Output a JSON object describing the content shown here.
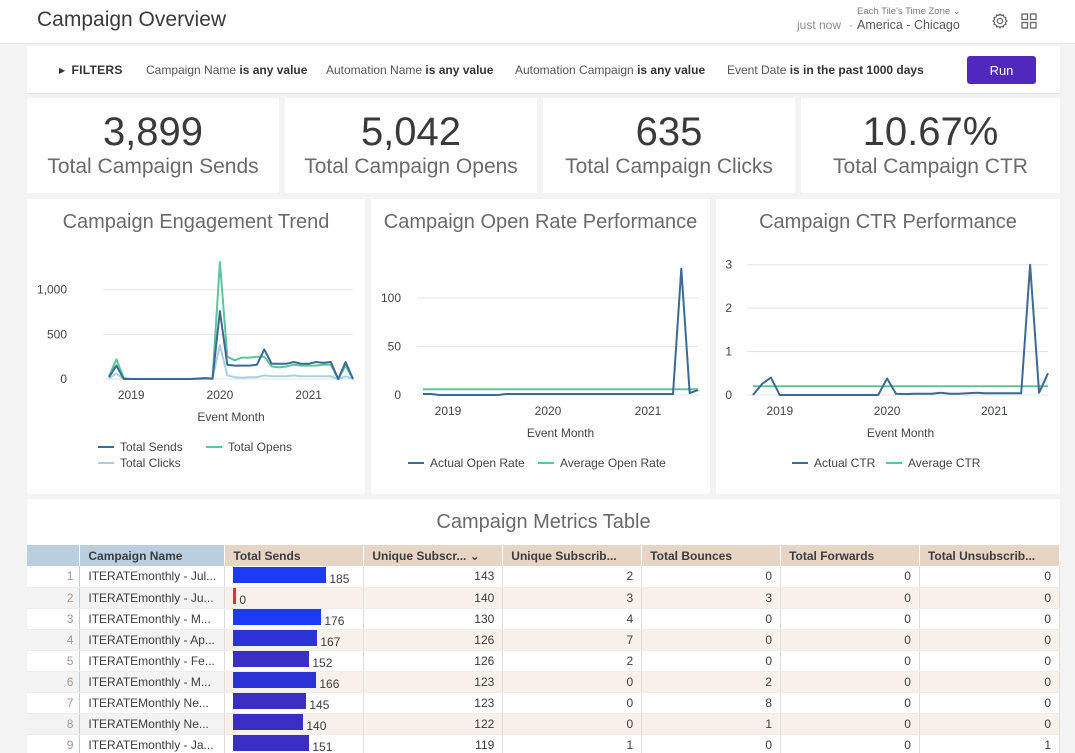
{
  "header": {
    "title": "Campaign Overview",
    "refresh": "just now",
    "tz_caption": "Each Tile's Time Zone",
    "tz_value": "America - Chicago",
    "dot": "·"
  },
  "filters": {
    "toggle_label": "FILTERS",
    "items": [
      {
        "field": "Campaign Name",
        "cond": "is any value"
      },
      {
        "field": "Automation Name",
        "cond": "is any value"
      },
      {
        "field": "Automation Campaign",
        "cond": "is any value"
      },
      {
        "field": "Event Date",
        "cond": "is in the past 1000 days"
      }
    ],
    "run_label": "Run"
  },
  "kpis": [
    {
      "value": "3,899",
      "label": "Total Campaign Sends"
    },
    {
      "value": "5,042",
      "label": "Total Campaign Opens"
    },
    {
      "value": "635",
      "label": "Total Campaign Clicks"
    },
    {
      "value": "10.67%",
      "label": "Total Campaign CTR"
    }
  ],
  "colors": {
    "sends": "#3d6a94",
    "opens": "#5cc59a",
    "clicks": "#a9cfe0",
    "actual": "#3d6a94",
    "average": "#5cc59a",
    "run": "#5128bd",
    "bar_blue": "#1d3af5",
    "bar_red": "#e0322a"
  },
  "charts": {
    "engagement": {
      "title": "Campaign Engagement Trend",
      "xlabel": "Event Month",
      "legend": [
        "Total Sends",
        "Total Opens",
        "Total Clicks"
      ]
    },
    "openrate": {
      "title": "Campaign Open Rate Performance",
      "xlabel": "Event Month",
      "legend": [
        "Actual Open Rate",
        "Average Open Rate"
      ]
    },
    "ctr": {
      "title": "Campaign CTR Performance",
      "xlabel": "Event Month",
      "legend": [
        "Actual CTR",
        "Average CTR"
      ]
    }
  },
  "chart_data": [
    {
      "type": "line",
      "title": "Campaign Engagement Trend",
      "xlabel": "Event Month",
      "xticks": [
        "2019",
        "2020",
        "2021"
      ],
      "yticks": [
        "0",
        "500",
        "1,000"
      ],
      "ylim": [
        0,
        1400
      ],
      "x": [
        "2018-10",
        "2018-11",
        "2018-12",
        "2019-01",
        "2019-02",
        "2019-03",
        "2019-04",
        "2019-05",
        "2019-06",
        "2019-07",
        "2019-08",
        "2019-09",
        "2019-10",
        "2019-11",
        "2019-12",
        "2020-01",
        "2020-02",
        "2020-03",
        "2020-04",
        "2020-05",
        "2020-06",
        "2020-07",
        "2020-08",
        "2020-09",
        "2020-10",
        "2020-11",
        "2020-12",
        "2021-01",
        "2021-02",
        "2021-03",
        "2021-04",
        "2021-05",
        "2021-06",
        "2021-07"
      ],
      "series": [
        {
          "name": "Total Sends",
          "values": [
            20,
            150,
            0,
            0,
            0,
            0,
            0,
            0,
            0,
            0,
            0,
            0,
            5,
            10,
            5,
            760,
            160,
            150,
            150,
            150,
            160,
            330,
            170,
            170,
            170,
            190,
            170,
            170,
            190,
            180,
            190,
            0,
            190,
            0
          ]
        },
        {
          "name": "Total Opens",
          "values": [
            30,
            220,
            10,
            0,
            0,
            0,
            0,
            0,
            0,
            0,
            0,
            0,
            5,
            10,
            5,
            1310,
            250,
            210,
            240,
            240,
            250,
            250,
            140,
            130,
            140,
            160,
            150,
            150,
            150,
            160,
            160,
            0,
            150,
            0
          ]
        },
        {
          "name": "Total Clicks",
          "values": [
            5,
            60,
            0,
            0,
            0,
            0,
            0,
            0,
            0,
            0,
            0,
            0,
            0,
            0,
            0,
            380,
            40,
            20,
            15,
            20,
            20,
            40,
            30,
            30,
            30,
            40,
            30,
            30,
            30,
            30,
            30,
            0,
            30,
            0
          ]
        }
      ]
    },
    {
      "type": "line",
      "title": "Campaign Open Rate Performance",
      "xlabel": "Event Month",
      "xticks": [
        "2019",
        "2020",
        "2021"
      ],
      "yticks": [
        "0",
        "50",
        "100"
      ],
      "ylim": [
        0,
        140
      ],
      "x": [
        "2018-10",
        "2018-11",
        "2018-12",
        "2019-01",
        "2019-02",
        "2019-03",
        "2019-04",
        "2019-05",
        "2019-06",
        "2019-07",
        "2019-08",
        "2019-09",
        "2019-10",
        "2019-11",
        "2019-12",
        "2020-01",
        "2020-02",
        "2020-03",
        "2020-04",
        "2020-05",
        "2020-06",
        "2020-07",
        "2020-08",
        "2020-09",
        "2020-10",
        "2020-11",
        "2020-12",
        "2021-01",
        "2021-02",
        "2021-03",
        "2021-04",
        "2021-05",
        "2021-06",
        "2021-07"
      ],
      "series": [
        {
          "name": "Actual Open Rate",
          "values": [
            1,
            1,
            0,
            0,
            0,
            0,
            0,
            0,
            0,
            0,
            1,
            1,
            1,
            1,
            1,
            1,
            1,
            1,
            1,
            1,
            1,
            1,
            1,
            1,
            1,
            1,
            1,
            1,
            1,
            1,
            1,
            130,
            2,
            5
          ]
        },
        {
          "name": "Average Open Rate",
          "values": [
            6,
            6,
            6,
            6,
            6,
            6,
            6,
            6,
            6,
            6,
            6,
            6,
            6,
            6,
            6,
            6,
            6,
            6,
            6,
            6,
            6,
            6,
            6,
            6,
            6,
            6,
            6,
            6,
            6,
            6,
            6,
            6,
            6,
            6
          ]
        }
      ]
    },
    {
      "type": "line",
      "title": "Campaign CTR Performance",
      "xlabel": "Event Month",
      "xticks": [
        "2019",
        "2020",
        "2021"
      ],
      "yticks": [
        "0",
        "1",
        "2",
        "3"
      ],
      "ylim": [
        0,
        3.2
      ],
      "x": [
        "2018-10",
        "2018-11",
        "2018-12",
        "2019-01",
        "2019-02",
        "2019-03",
        "2019-04",
        "2019-05",
        "2019-06",
        "2019-07",
        "2019-08",
        "2019-09",
        "2019-10",
        "2019-11",
        "2019-12",
        "2020-01",
        "2020-02",
        "2020-03",
        "2020-04",
        "2020-05",
        "2020-06",
        "2020-07",
        "2020-08",
        "2020-09",
        "2020-10",
        "2020-11",
        "2020-12",
        "2021-01",
        "2021-02",
        "2021-03",
        "2021-04",
        "2021-05",
        "2021-06",
        "2021-07"
      ],
      "series": [
        {
          "name": "Actual CTR",
          "values": [
            0,
            0.25,
            0.4,
            0,
            0,
            0,
            0,
            0,
            0,
            0,
            0,
            0,
            0,
            0,
            0,
            0.38,
            0.03,
            0.02,
            0.03,
            0.03,
            0.03,
            0.05,
            0.03,
            0.03,
            0.04,
            0.05,
            0.04,
            0.04,
            0.04,
            0.04,
            0.04,
            3.0,
            0.05,
            0.5
          ]
        },
        {
          "name": "Average CTR",
          "values": [
            0.2,
            0.2,
            0.2,
            0.2,
            0.2,
            0.2,
            0.2,
            0.2,
            0.2,
            0.2,
            0.2,
            0.2,
            0.2,
            0.2,
            0.2,
            0.2,
            0.2,
            0.2,
            0.2,
            0.2,
            0.2,
            0.2,
            0.2,
            0.2,
            0.2,
            0.2,
            0.2,
            0.2,
            0.2,
            0.2,
            0.2,
            0.2,
            0.2,
            0.2
          ]
        }
      ]
    },
    {
      "type": "table",
      "title": "Campaign Metrics Table"
    }
  ],
  "table": {
    "title": "Campaign Metrics Table",
    "headers": [
      "Campaign Name",
      "Total Sends",
      "Unique Subscr...",
      "Unique Subscrib...",
      "Total Bounces",
      "Total Forwards",
      "Total Unsubscrib..."
    ],
    "sort_indicator": "⌄",
    "max_sends": 185,
    "rows": [
      {
        "n": "1",
        "name": "ITERATEmonthly - Jul...",
        "sends": 185,
        "u1": "143",
        "u2": "2",
        "bounces": "0",
        "fwd": "0",
        "unsub": "0"
      },
      {
        "n": "2",
        "name": "ITERATEmonthly - Ju...",
        "sends": 0,
        "u1": "140",
        "u2": "3",
        "bounces": "3",
        "fwd": "0",
        "unsub": "0"
      },
      {
        "n": "3",
        "name": "ITERATEmonthly - M...",
        "sends": 176,
        "u1": "130",
        "u2": "4",
        "bounces": "0",
        "fwd": "0",
        "unsub": "0"
      },
      {
        "n": "4",
        "name": "ITERATEmonthly - Ap...",
        "sends": 167,
        "u1": "126",
        "u2": "7",
        "bounces": "0",
        "fwd": "0",
        "unsub": "0"
      },
      {
        "n": "5",
        "name": "ITERATEmonthly - Fe...",
        "sends": 152,
        "u1": "126",
        "u2": "2",
        "bounces": "0",
        "fwd": "0",
        "unsub": "0"
      },
      {
        "n": "6",
        "name": "ITERATEmonthly - M...",
        "sends": 166,
        "u1": "123",
        "u2": "0",
        "bounces": "2",
        "fwd": "0",
        "unsub": "0"
      },
      {
        "n": "7",
        "name": "ITERATEMonthly Ne...",
        "sends": 145,
        "u1": "123",
        "u2": "0",
        "bounces": "8",
        "fwd": "0",
        "unsub": "0"
      },
      {
        "n": "8",
        "name": "ITERATEMonthly Ne...",
        "sends": 140,
        "u1": "122",
        "u2": "0",
        "bounces": "1",
        "fwd": "0",
        "unsub": "0"
      },
      {
        "n": "9",
        "name": "ITERATEmonthly - Ja...",
        "sends": 151,
        "u1": "119",
        "u2": "1",
        "bounces": "0",
        "fwd": "0",
        "unsub": "1"
      }
    ]
  }
}
